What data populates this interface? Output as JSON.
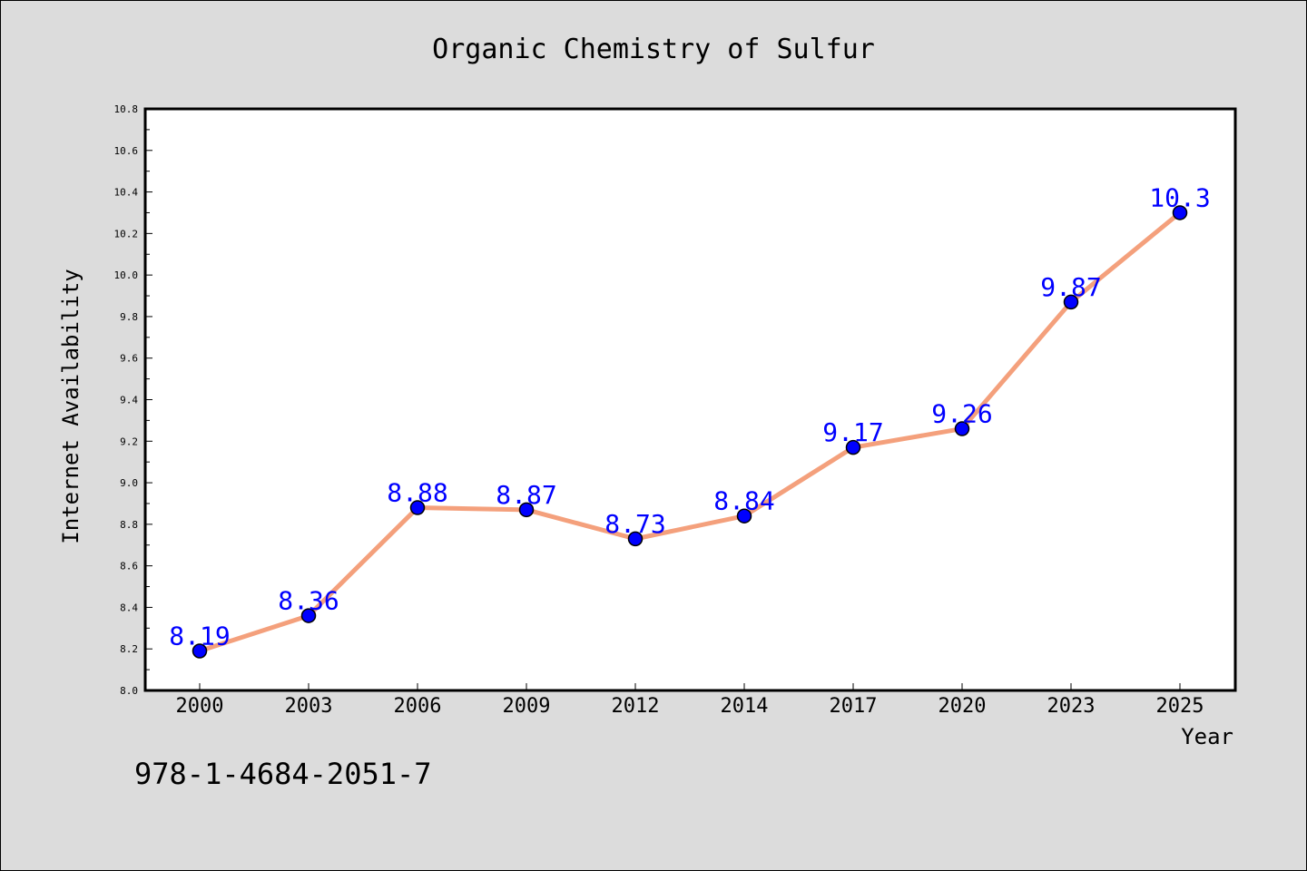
{
  "chart_data": {
    "type": "line",
    "title": "Organic Chemistry of Sulfur",
    "xlabel": "Year",
    "ylabel": "Internet Availability",
    "categories": [
      "2000",
      "2003",
      "2006",
      "2009",
      "2012",
      "2014",
      "2017",
      "2020",
      "2023",
      "2025"
    ],
    "values": [
      8.19,
      8.36,
      8.88,
      8.87,
      8.73,
      8.84,
      9.17,
      9.26,
      9.87,
      10.3
    ],
    "data_labels": [
      "8.19",
      "8.36",
      "8.88",
      "8.87",
      "8.73",
      "8.84",
      "9.17",
      "9.26",
      "9.87",
      "10.3"
    ],
    "ylim": [
      8.0,
      10.8
    ],
    "yticks": [
      "8.0",
      "8.2",
      "8.4",
      "8.6",
      "8.8",
      "9.0",
      "9.2",
      "9.4",
      "9.6",
      "9.8",
      "10.0",
      "10.2",
      "10.4",
      "10.6",
      "10.8"
    ],
    "grid": false,
    "legend": "none",
    "line_color": "#f4a07c",
    "marker_color": "#0000ff",
    "label_color": "#0000ff",
    "annotation": "978-1-4684-2051-7"
  }
}
